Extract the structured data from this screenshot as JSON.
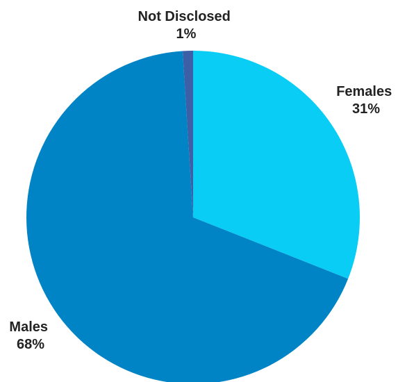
{
  "chart_data": {
    "type": "pie",
    "title": "",
    "slices": [
      {
        "label": "Females",
        "percent_label": "31%",
        "value": 31,
        "color": "#0ACDF6"
      },
      {
        "label": "Males",
        "percent_label": "68%",
        "value": 68,
        "color": "#0084C5"
      },
      {
        "label": "Not Disclosed",
        "percent_label": "1%",
        "value": 1,
        "color": "#3D5FA8"
      }
    ],
    "legend": "none",
    "labels_position": "outside"
  }
}
